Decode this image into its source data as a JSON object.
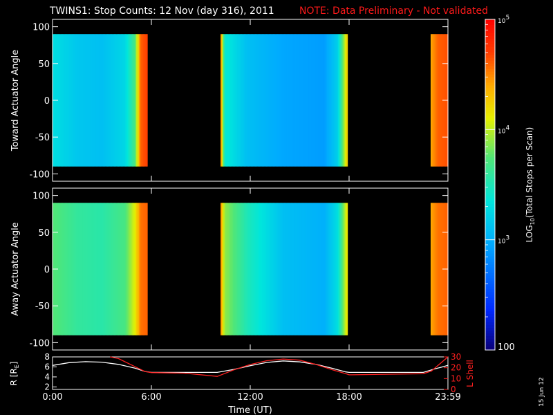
{
  "figure": {
    "title": "TWINS1: Stop Counts: 12 Nov (day 316), 2011",
    "note": "NOTE: Data Preliminary - Not validated",
    "stamp": "15 Jun 12",
    "colors": {
      "background": "#000000",
      "axes": "#ffffff",
      "note": "#ff1a1a",
      "lshell": "#ff2020"
    }
  },
  "chart_data": [
    {
      "id": "toward",
      "type": "heatmap",
      "ylabel": "Toward Actuator Angle",
      "ylim": [
        -110,
        110
      ],
      "yticks": [
        100,
        50,
        0,
        -50,
        -100
      ],
      "xlim": [
        0,
        24
      ],
      "data_y_range": [
        -90,
        90
      ],
      "scan_blocks": [
        {
          "start_hr": 0.0,
          "end_hr": 5.75
        },
        {
          "start_hr": 10.2,
          "end_hr": 17.9
        },
        {
          "start_hr": 22.95,
          "end_hr": 24.0
        }
      ],
      "counts_profile": [
        {
          "hr": 0.0,
          "log10": 3.3
        },
        {
          "hr": 1.5,
          "log10": 3.15
        },
        {
          "hr": 3.0,
          "log10": 3.1
        },
        {
          "hr": 4.4,
          "log10": 3.25
        },
        {
          "hr": 5.0,
          "log10": 3.7
        },
        {
          "hr": 5.35,
          "log10": 4.6
        },
        {
          "hr": 5.75,
          "log10": 4.7
        },
        {
          "hr": 10.2,
          "log10": 4.55
        },
        {
          "hr": 10.45,
          "log10": 3.4
        },
        {
          "hr": 11.8,
          "log10": 3.1
        },
        {
          "hr": 14.0,
          "log10": 2.95
        },
        {
          "hr": 16.5,
          "log10": 2.9
        },
        {
          "hr": 17.3,
          "log10": 3.2
        },
        {
          "hr": 17.9,
          "log10": 4.3
        },
        {
          "hr": 22.95,
          "log10": 4.4
        },
        {
          "hr": 23.4,
          "log10": 4.6
        },
        {
          "hr": 24.0,
          "log10": 4.65
        }
      ]
    },
    {
      "id": "away",
      "type": "heatmap",
      "ylabel": "Away Actuator Angle",
      "ylim": [
        -110,
        110
      ],
      "yticks": [
        100,
        50,
        0,
        -50,
        -100
      ],
      "xlim": [
        0,
        24
      ],
      "data_y_range": [
        -90,
        90
      ],
      "scan_blocks": [
        {
          "start_hr": 0.0,
          "end_hr": 5.75
        },
        {
          "start_hr": 10.2,
          "end_hr": 17.9
        },
        {
          "start_hr": 22.95,
          "end_hr": 24.0
        }
      ],
      "counts_profile": [
        {
          "hr": 0.0,
          "log10": 3.75
        },
        {
          "hr": 1.5,
          "log10": 3.6
        },
        {
          "hr": 3.0,
          "log10": 3.55
        },
        {
          "hr": 4.4,
          "log10": 3.7
        },
        {
          "hr": 5.0,
          "log10": 4.1
        },
        {
          "hr": 5.35,
          "log10": 4.55
        },
        {
          "hr": 5.75,
          "log10": 4.6
        },
        {
          "hr": 10.2,
          "log10": 4.5
        },
        {
          "hr": 10.45,
          "log10": 3.9
        },
        {
          "hr": 11.8,
          "log10": 3.5
        },
        {
          "hr": 14.0,
          "log10": 3.1
        },
        {
          "hr": 16.5,
          "log10": 3.0
        },
        {
          "hr": 17.3,
          "log10": 3.3
        },
        {
          "hr": 17.9,
          "log10": 4.2
        },
        {
          "hr": 22.95,
          "log10": 4.4
        },
        {
          "hr": 23.4,
          "log10": 4.55
        },
        {
          "hr": 24.0,
          "log10": 4.6
        }
      ]
    },
    {
      "id": "orbit",
      "type": "line",
      "xlabel": "Time (UT)",
      "xticks": [
        {
          "hr": 0,
          "label": "0:00"
        },
        {
          "hr": 6,
          "label": "6:00"
        },
        {
          "hr": 12,
          "label": "12:00"
        },
        {
          "hr": 18,
          "label": "18:00"
        },
        {
          "hr": 24,
          "label": "23:59"
        }
      ],
      "ylabel_left": "R [R_E]",
      "ylim_left": [
        1.5,
        8
      ],
      "yticks_left": [
        8,
        6,
        4,
        2
      ],
      "ylabel_right": "L Shell",
      "ylim_right": [
        0,
        30
      ],
      "yticks_right": [
        30,
        20,
        10,
        0
      ],
      "series": [
        {
          "name": "R",
          "axis": "left",
          "color": "#ffffff",
          "x": [
            0,
            1.0,
            2.0,
            3.0,
            4.0,
            5.0,
            5.6,
            6.0,
            10.0,
            11.0,
            12.0,
            13.0,
            14.0,
            15.0,
            16.0,
            17.0,
            17.8,
            18.0,
            22.5,
            23.2,
            24.0
          ],
          "y": [
            6.3,
            6.85,
            7.05,
            6.95,
            6.5,
            5.75,
            5.1,
            4.9,
            4.9,
            5.5,
            6.25,
            6.9,
            7.2,
            7.0,
            6.5,
            5.7,
            5.0,
            4.9,
            4.9,
            5.6,
            6.3
          ]
        },
        {
          "name": "L Shell",
          "axis": "right",
          "color": "#ff2020",
          "x": [
            3.5,
            4.0,
            5.0,
            5.6,
            6.0,
            8.0,
            10.0,
            11.0,
            12.0,
            13.0,
            14.0,
            15.0,
            16.0,
            17.0,
            17.8,
            18.0,
            22.5,
            23.0,
            24.0
          ],
          "y": [
            30,
            28.5,
            21,
            16.5,
            15.5,
            15,
            12,
            18,
            23,
            26.5,
            28,
            27,
            23,
            18,
            14.5,
            13.5,
            14.5,
            17,
            30
          ]
        }
      ]
    },
    {
      "id": "colorbar",
      "type": "heatmap",
      "label": "LOG10(Total Stops per Scan)",
      "range_log10": [
        2,
        5
      ],
      "tick_labels": [
        "10^5",
        "10^4",
        "10^3",
        "100"
      ],
      "tick_values_log10": [
        5,
        4,
        3,
        2
      ],
      "minor_ticks": [
        200,
        300,
        400,
        500,
        600,
        700,
        800,
        900,
        2000,
        3000,
        4000,
        5000,
        6000,
        7000,
        8000,
        9000,
        20000,
        30000,
        40000,
        50000,
        60000,
        70000,
        80000,
        90000
      ]
    }
  ]
}
